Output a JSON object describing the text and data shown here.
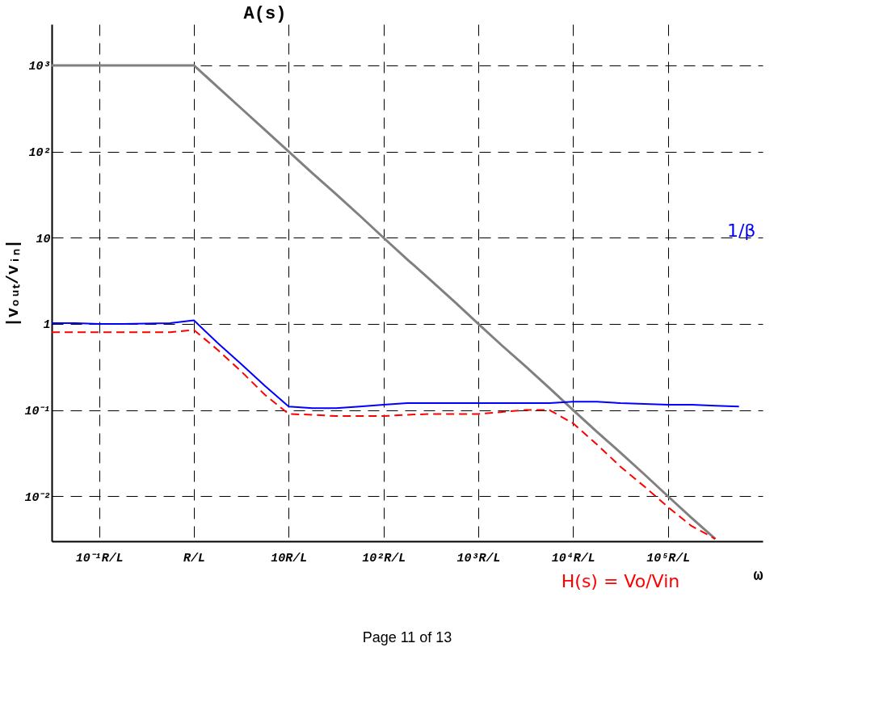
{
  "chart_data": {
    "type": "line",
    "xlabel": "ω",
    "ylabel": "|vₒᵤₜ/vᵢₙ|",
    "log": "y",
    "grid": true,
    "marker": "none",
    "categories": [
      null,
      null,
      "10⁻¹R/L",
      null,
      null,
      null,
      "R/L",
      null,
      null,
      null,
      "10R/L",
      null,
      null,
      null,
      "10²R/L",
      null,
      null,
      null,
      "10³R/L",
      null,
      null,
      null,
      "10⁴R/L",
      null,
      null,
      null,
      "10⁵R/L",
      null,
      null,
      null,
      null
    ],
    "ylim": [
      0.003,
      3000
    ],
    "yticks": [
      {
        "value": 0.01,
        "label": "10⁻²"
      },
      {
        "value": 0.1,
        "label": "10⁻¹"
      },
      1,
      10,
      {
        "value": 100,
        "label": "10²"
      },
      {
        "value": 1000,
        "label": "10³"
      }
    ],
    "series": [
      {
        "color": "#808080",
        "line_style": "solid",
        "values": [
          1000,
          1000,
          1000,
          1000,
          1000,
          1000,
          1000,
          562,
          316,
          178,
          100,
          56,
          32,
          18,
          10,
          5.6,
          3.2,
          1.8,
          1,
          0.56,
          0.32,
          0.18,
          0.1,
          0.056,
          0.032,
          0.018,
          0.01,
          0.0056,
          0.0032,
          null,
          null
        ]
      },
      {
        "color": "#0000ff",
        "line_style": "solid",
        "values": [
          1.02,
          1.02,
          1.0,
          1.0,
          1.01,
          1.02,
          1.1,
          0.6,
          0.34,
          0.19,
          0.11,
          0.105,
          0.105,
          0.11,
          0.115,
          0.12,
          0.12,
          0.12,
          0.12,
          0.12,
          0.12,
          0.12,
          0.125,
          0.125,
          0.12,
          0.118,
          0.115,
          0.115,
          0.112,
          0.11,
          null
        ]
      },
      {
        "color": "#ff0000",
        "line_style": "dashed",
        "values": [
          0.8,
          0.8,
          0.8,
          0.8,
          0.8,
          0.8,
          0.85,
          0.5,
          0.28,
          0.15,
          0.09,
          0.088,
          0.085,
          0.085,
          0.085,
          0.088,
          0.09,
          0.09,
          0.09,
          0.095,
          0.1,
          0.1,
          0.07,
          0.04,
          0.022,
          0.013,
          0.0075,
          0.0045,
          0.0032,
          null,
          null
        ]
      }
    ],
    "annotations": [
      "A(s)",
      "1/β",
      "H(s) = Vo/Vin",
      "Page 11 of 13"
    ]
  }
}
